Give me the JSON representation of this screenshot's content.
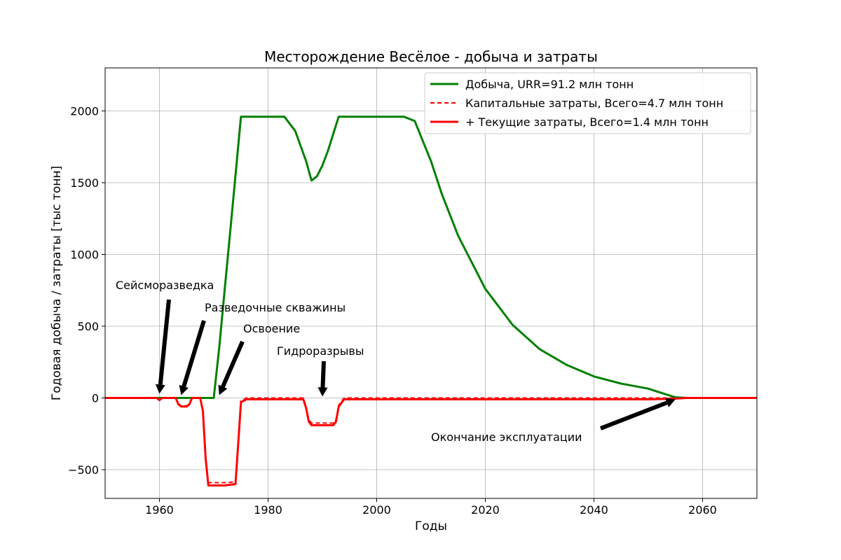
{
  "chart_data": {
    "type": "line",
    "title": "Месторождение Весёлое - добыча и затраты",
    "xlabel": "Годы",
    "ylabel": "Годовая добыча / затраты [тыс тонн]",
    "xlim": [
      1950,
      2070
    ],
    "ylim": [
      -700,
      2300
    ],
    "xticks": [
      1960,
      1980,
      2000,
      2020,
      2040,
      2060
    ],
    "xtick_labels": [
      "1960",
      "1980",
      "2000",
      "2020",
      "2040",
      "2060"
    ],
    "yticks": [
      -500,
      0,
      500,
      1000,
      1500,
      2000
    ],
    "ytick_labels": [
      "−500",
      "0",
      "500",
      "1000",
      "1500",
      "2000"
    ],
    "grid": true,
    "legend_position": "top-right",
    "colors": {
      "production": "#008000",
      "costs": "#ff0000",
      "grid": "#b0b0b0"
    },
    "series": [
      {
        "name": "Добыча, URR=91.2 млн тонн",
        "style": "solid",
        "color": "#008000",
        "x": [
          1950,
          1969,
          1970,
          1971,
          1972,
          1973,
          1974,
          1975,
          1980,
          1983,
          1985,
          1987,
          1988,
          1989,
          1990,
          1991,
          1992,
          1993,
          2000,
          2005,
          2007,
          2010,
          2012,
          2015,
          2020,
          2025,
          2030,
          2035,
          2040,
          2045,
          2050,
          2052,
          2055,
          2057,
          2070
        ],
        "y": [
          0,
          0,
          0,
          350,
          750,
          1150,
          1550,
          1960,
          1960,
          1960,
          1860,
          1650,
          1515,
          1545,
          1620,
          1720,
          1840,
          1960,
          1960,
          1960,
          1930,
          1650,
          1420,
          1130,
          760,
          510,
          340,
          230,
          150,
          100,
          65,
          40,
          5,
          0,
          0
        ]
      },
      {
        "name": "Капитальные затраты, Всего=4.7 млн тонн",
        "style": "dashed",
        "color": "#ff0000",
        "x": [
          1950,
          1959.5,
          1960,
          1960.5,
          1963,
          1963.5,
          1964,
          1965,
          1965.5,
          1966,
          1967.5,
          1968,
          1968.5,
          1969,
          1972,
          1974,
          1974.5,
          1975,
          1976,
          1986.5,
          1987,
          1987.5,
          1988,
          1992,
          1992.5,
          1993,
          1994,
          2070
        ],
        "y": [
          0,
          0,
          -10,
          0,
          0,
          -40,
          -55,
          -55,
          -40,
          0,
          0,
          -80,
          -400,
          -590,
          -590,
          -585,
          -300,
          -20,
          0,
          0,
          -60,
          -150,
          -175,
          -175,
          -150,
          -50,
          0,
          0
        ]
      },
      {
        "name": "+ Текущие затраты, Всего=1.4 млн тонн",
        "style": "solid",
        "color": "#ff0000",
        "x": [
          1950,
          1959.5,
          1960,
          1960.5,
          1963,
          1963.5,
          1964,
          1965,
          1965.5,
          1966,
          1967.5,
          1968,
          1968.5,
          1969,
          1972,
          1974,
          1974.5,
          1975,
          1976,
          1986.5,
          1987,
          1987.5,
          1988,
          1992,
          1992.5,
          1993,
          1994,
          2050,
          2055,
          2057,
          2070
        ],
        "y": [
          0,
          0,
          -15,
          0,
          0,
          -45,
          -60,
          -60,
          -45,
          0,
          0,
          -90,
          -420,
          -610,
          -610,
          -600,
          -320,
          -30,
          -10,
          -10,
          -70,
          -165,
          -190,
          -190,
          -165,
          -60,
          -10,
          -10,
          -5,
          0,
          0
        ]
      }
    ],
    "annotations": [
      {
        "text": "Сейсморазведка",
        "x": 1960,
        "y": 30
      },
      {
        "text": "Разведочные скважины",
        "x": 1964,
        "y": 20
      },
      {
        "text": "Освоение",
        "x": 1971,
        "y": 20
      },
      {
        "text": "Гидроразрывы",
        "x": 1990,
        "y": 10
      },
      {
        "text": "Окончание эксплуатации",
        "x": 2055,
        "y": -10
      }
    ]
  }
}
